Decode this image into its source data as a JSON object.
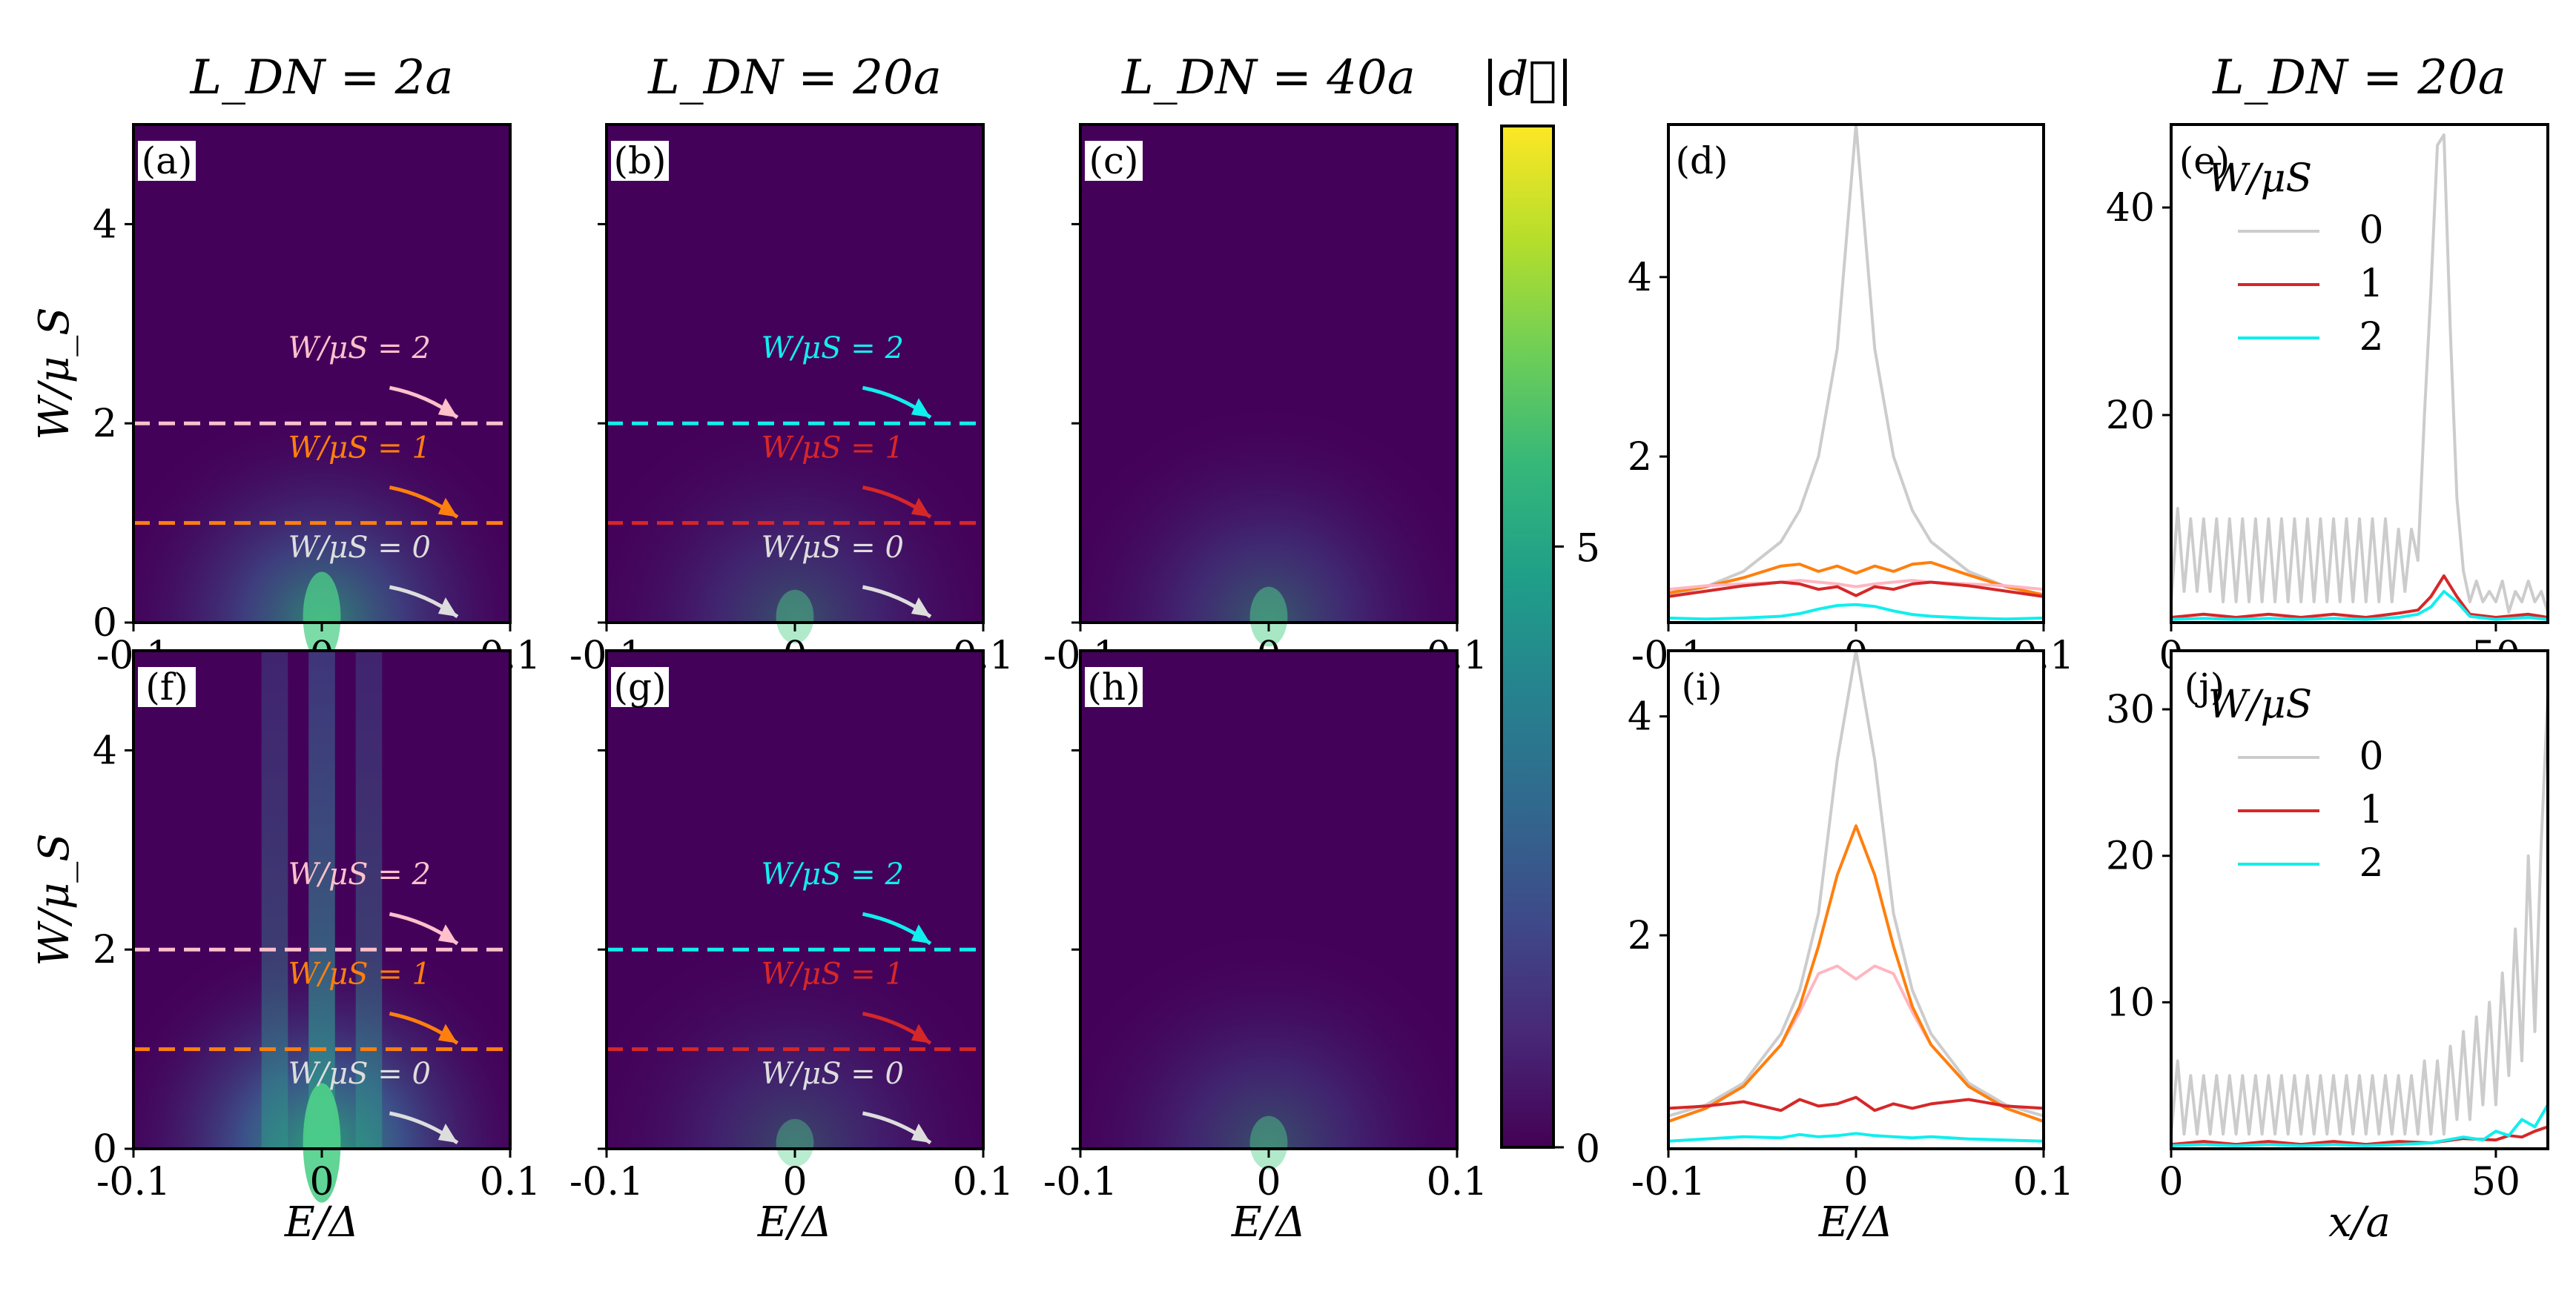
{
  "colors": {
    "w0_line": "#cccccc",
    "w1_line": "#d62728",
    "w2_line": "#11eeee",
    "orange": "#ff7f0e",
    "pink": "#ffb6c1",
    "heat_bg": "#44015a"
  },
  "chart_data": [
    {
      "id": "a",
      "type": "heatmap",
      "label": "(a)",
      "title": "L_DN = 2a",
      "xlabel": "E/Δ",
      "ylabel": "W/μ_S",
      "xlim": [
        -0.1,
        0.1
      ],
      "ylim": [
        0,
        5
      ],
      "x_ticks": [
        "-0.1",
        "0",
        "0.1"
      ],
      "y_ticks": [
        "0",
        "2",
        "4"
      ],
      "glow_strength": 1.5,
      "stripes": false,
      "cuts": [
        {
          "w": 0,
          "label": "W/μS = 0",
          "color": "#dddddd"
        },
        {
          "w": 1,
          "label": "W/μS = 1",
          "color": "#ff7f0e"
        },
        {
          "w": 2,
          "label": "W/μS = 2",
          "color": "#ffc0cb"
        }
      ]
    },
    {
      "id": "b",
      "type": "heatmap",
      "label": "(b)",
      "title": "L_DN = 20a",
      "xlabel": "E/Δ",
      "ylabel": "",
      "xlim": [
        -0.1,
        0.1
      ],
      "ylim": [
        0,
        5
      ],
      "x_ticks": [
        "-0.1",
        "0",
        "0.1"
      ],
      "y_ticks": [],
      "glow_strength": 0.9,
      "stripes": false,
      "cuts": [
        {
          "w": 0,
          "label": "W/μS = 0",
          "color": "#dddddd"
        },
        {
          "w": 1,
          "label": "W/μS = 1",
          "color": "#d62728"
        },
        {
          "w": 2,
          "label": "W/μS = 2",
          "color": "#11eeee"
        }
      ]
    },
    {
      "id": "c",
      "type": "heatmap",
      "label": "(c)",
      "title": "L_DN = 40a",
      "xlabel": "E/Δ",
      "ylabel": "",
      "xlim": [
        -0.1,
        0.1
      ],
      "ylim": [
        0,
        5
      ],
      "x_ticks": [
        "-0.1",
        "0",
        "0.1"
      ],
      "y_ticks": [],
      "glow_strength": 1.0,
      "stripes": false,
      "cuts": []
    },
    {
      "id": "f",
      "type": "heatmap",
      "label": "(f)",
      "title": "",
      "xlabel": "E/Δ",
      "ylabel": "W/μ_S",
      "xlim": [
        -0.1,
        0.1
      ],
      "ylim": [
        0,
        5
      ],
      "x_ticks": [
        "-0.1",
        "0",
        "0.1"
      ],
      "y_ticks": [
        "0",
        "2",
        "4"
      ],
      "glow_strength": 2.0,
      "stripes": true,
      "cuts": [
        {
          "w": 0,
          "label": "W/μS = 0",
          "color": "#dddddd"
        },
        {
          "w": 1,
          "label": "W/μS = 1",
          "color": "#ff7f0e"
        },
        {
          "w": 2,
          "label": "W/μS = 2",
          "color": "#ffc0cb"
        }
      ]
    },
    {
      "id": "g",
      "type": "heatmap",
      "label": "(g)",
      "title": "",
      "xlabel": "E/Δ",
      "ylabel": "",
      "xlim": [
        -0.1,
        0.1
      ],
      "ylim": [
        0,
        5
      ],
      "x_ticks": [
        "-0.1",
        "0",
        "0.1"
      ],
      "y_ticks": [],
      "glow_strength": 0.8,
      "stripes": false,
      "cuts": [
        {
          "w": 0,
          "label": "W/μS = 0",
          "color": "#dddddd"
        },
        {
          "w": 1,
          "label": "W/μS = 1",
          "color": "#d62728"
        },
        {
          "w": 2,
          "label": "W/μS = 2",
          "color": "#11eeee"
        }
      ]
    },
    {
      "id": "h",
      "type": "heatmap",
      "label": "(h)",
      "title": "",
      "xlabel": "E/Δ",
      "ylabel": "",
      "xlim": [
        -0.1,
        0.1
      ],
      "ylim": [
        0,
        5
      ],
      "x_ticks": [
        "-0.1",
        "0",
        "0.1"
      ],
      "y_ticks": [],
      "glow_strength": 0.9,
      "stripes": false,
      "cuts": []
    },
    {
      "id": "colorbar",
      "type": "colorbar",
      "label": "|d⃗|",
      "range": [
        0,
        8.5
      ],
      "ticks": [
        "0",
        "5"
      ],
      "colormap": "viridis"
    },
    {
      "id": "d",
      "type": "line",
      "label": "(d)",
      "xlabel": "",
      "xlim": [
        -0.1,
        0.1
      ],
      "ylim": [
        0.15,
        5.7
      ],
      "x_ticks": [
        "-0.1",
        "0",
        "0.1"
      ],
      "y_ticks": [
        "2",
        "4"
      ],
      "x": [
        -0.1,
        -0.08,
        -0.06,
        -0.04,
        -0.03,
        -0.02,
        -0.01,
        0,
        0.01,
        0.02,
        0.03,
        0.04,
        0.06,
        0.08,
        0.1
      ],
      "series": [
        {
          "name": "W/μS = 0",
          "color": "#cccccc",
          "values": [
            0.45,
            0.55,
            0.72,
            1.05,
            1.4,
            2.0,
            3.2,
            5.7,
            3.2,
            2.0,
            1.4,
            1.05,
            0.72,
            0.55,
            0.45
          ]
        },
        {
          "name": "W/μS = 1 (orange)",
          "color": "#ff7f0e",
          "values": [
            0.48,
            0.55,
            0.65,
            0.78,
            0.8,
            0.72,
            0.78,
            0.7,
            0.78,
            0.72,
            0.8,
            0.82,
            0.68,
            0.55,
            0.46
          ]
        },
        {
          "name": "W/μS = 2 (pink)",
          "color": "#ffb6c1",
          "values": [
            0.52,
            0.56,
            0.58,
            0.6,
            0.62,
            0.6,
            0.58,
            0.55,
            0.58,
            0.6,
            0.62,
            0.6,
            0.58,
            0.56,
            0.52
          ]
        },
        {
          "name": "W/μS = 1",
          "color": "#d62728",
          "values": [
            0.44,
            0.5,
            0.56,
            0.6,
            0.58,
            0.52,
            0.55,
            0.45,
            0.55,
            0.52,
            0.58,
            0.6,
            0.56,
            0.5,
            0.44
          ]
        },
        {
          "name": "W/μS = 2",
          "color": "#11eeee",
          "values": [
            0.2,
            0.19,
            0.2,
            0.22,
            0.25,
            0.3,
            0.34,
            0.35,
            0.33,
            0.28,
            0.24,
            0.22,
            0.2,
            0.19,
            0.2
          ]
        }
      ]
    },
    {
      "id": "i",
      "type": "line",
      "label": "(i)",
      "xlabel": "E/Δ",
      "xlim": [
        -0.1,
        0.1
      ],
      "ylim": [
        0.05,
        4.6
      ],
      "x_ticks": [
        "-0.1",
        "0",
        "0.1"
      ],
      "y_ticks": [
        "2",
        "4"
      ],
      "x": [
        -0.1,
        -0.08,
        -0.06,
        -0.04,
        -0.03,
        -0.02,
        -0.01,
        0,
        0.01,
        0.02,
        0.03,
        0.04,
        0.06,
        0.08,
        0.1
      ],
      "series": [
        {
          "name": "W/μS = 0",
          "color": "#cccccc",
          "values": [
            0.35,
            0.45,
            0.65,
            1.1,
            1.5,
            2.2,
            3.6,
            4.6,
            3.6,
            2.2,
            1.5,
            1.1,
            0.65,
            0.45,
            0.35
          ]
        },
        {
          "name": "W/μS = 2 (pink)",
          "color": "#ffb6c1",
          "values": [
            0.3,
            0.42,
            0.62,
            1.0,
            1.3,
            1.65,
            1.72,
            1.6,
            1.72,
            1.65,
            1.3,
            1.0,
            0.62,
            0.42,
            0.3
          ]
        },
        {
          "name": "W/μS = 1 (orange)",
          "color": "#ff7f0e",
          "values": [
            0.3,
            0.42,
            0.62,
            1.0,
            1.35,
            1.9,
            2.55,
            3.0,
            2.55,
            1.9,
            1.35,
            1.0,
            0.62,
            0.42,
            0.3
          ]
        },
        {
          "name": "W/μS = 1",
          "color": "#d62728",
          "values": [
            0.42,
            0.44,
            0.48,
            0.4,
            0.5,
            0.44,
            0.46,
            0.52,
            0.4,
            0.46,
            0.42,
            0.46,
            0.5,
            0.44,
            0.42
          ]
        },
        {
          "name": "W/μS = 2",
          "color": "#11eeee",
          "values": [
            0.12,
            0.14,
            0.16,
            0.15,
            0.18,
            0.16,
            0.17,
            0.19,
            0.17,
            0.16,
            0.15,
            0.16,
            0.14,
            0.13,
            0.12
          ]
        }
      ]
    },
    {
      "id": "e",
      "type": "line",
      "label": "(e)",
      "title": "L_DN = 20a",
      "xlabel": "",
      "xlim": [
        0,
        58
      ],
      "ylim": [
        0,
        48
      ],
      "x_ticks": [
        "0",
        "50"
      ],
      "y_ticks": [
        "20",
        "40"
      ],
      "legend": {
        "title": "W/μS",
        "entries": [
          "0",
          "1",
          "2"
        ]
      },
      "series": [
        {
          "name": "W/μS = 0",
          "color": "#cccccc",
          "x": [
            0,
            1,
            2,
            3,
            4,
            5,
            6,
            7,
            8,
            9,
            10,
            11,
            12,
            13,
            14,
            15,
            16,
            17,
            18,
            19,
            20,
            21,
            22,
            23,
            24,
            25,
            26,
            27,
            28,
            29,
            30,
            31,
            32,
            33,
            34,
            35,
            36,
            37,
            38,
            39,
            40,
            41,
            42,
            43,
            44,
            45,
            46,
            47,
            48,
            49,
            50,
            51,
            52,
            53,
            54,
            55,
            56,
            57,
            58
          ],
          "values": [
            2,
            11,
            3,
            10,
            3,
            10,
            3,
            10,
            2,
            10,
            2,
            10,
            2,
            10,
            2,
            10,
            2,
            10,
            2,
            10,
            2,
            10,
            2,
            10,
            2,
            10,
            2,
            10,
            2,
            10,
            2,
            10,
            2,
            10,
            2,
            9,
            3,
            9,
            6,
            20,
            32,
            46,
            47,
            28,
            12,
            5,
            2,
            4,
            2,
            3,
            2,
            4,
            1,
            3,
            2,
            4,
            2,
            3,
            1
          ]
        },
        {
          "name": "W/μS = 1",
          "color": "#d62728",
          "x": [
            0,
            5,
            10,
            15,
            20,
            25,
            30,
            35,
            38,
            40,
            42,
            44,
            46,
            50,
            55,
            58
          ],
          "values": [
            0.5,
            0.8,
            0.5,
            0.8,
            0.5,
            0.8,
            0.5,
            0.9,
            1.2,
            2.5,
            4.5,
            2.5,
            0.8,
            0.5,
            0.8,
            0.5
          ]
        },
        {
          "name": "W/μS = 2",
          "color": "#11eeee",
          "x": [
            0,
            5,
            10,
            15,
            20,
            25,
            30,
            35,
            38,
            40,
            42,
            44,
            46,
            50,
            55,
            58
          ],
          "values": [
            0.3,
            0.4,
            0.3,
            0.4,
            0.3,
            0.4,
            0.3,
            0.5,
            0.8,
            1.5,
            3.0,
            2.0,
            0.6,
            0.3,
            0.5,
            0.3
          ]
        }
      ]
    },
    {
      "id": "j",
      "type": "line",
      "label": "(j)",
      "xlabel": "x/a",
      "xlim": [
        0,
        58
      ],
      "ylim": [
        0,
        34
      ],
      "x_ticks": [
        "0",
        "50"
      ],
      "y_ticks": [
        "10",
        "20",
        "30"
      ],
      "legend": {
        "title": "W/μS",
        "entries": [
          "0",
          "1",
          "2"
        ]
      },
      "series": [
        {
          "name": "W/μS = 0",
          "color": "#cccccc",
          "x": [
            0,
            1,
            2,
            3,
            4,
            5,
            6,
            7,
            8,
            9,
            10,
            11,
            12,
            13,
            14,
            15,
            16,
            17,
            18,
            19,
            20,
            21,
            22,
            23,
            24,
            25,
            26,
            27,
            28,
            29,
            30,
            31,
            32,
            33,
            34,
            35,
            36,
            37,
            38,
            39,
            40,
            41,
            42,
            43,
            44,
            45,
            46,
            47,
            48,
            49,
            50,
            51,
            52,
            53,
            54,
            55,
            56,
            57,
            58
          ],
          "values": [
            1,
            6,
            1,
            5,
            1,
            5,
            1,
            5,
            1,
            5,
            1,
            5,
            1,
            5,
            1,
            5,
            1,
            5,
            1,
            5,
            1,
            5,
            1,
            5,
            1,
            5,
            1,
            5,
            1,
            5,
            1,
            5,
            1,
            5,
            1,
            5,
            1,
            5,
            1,
            6,
            1,
            6,
            1,
            7,
            2,
            8,
            2,
            9,
            3,
            10,
            3,
            12,
            5,
            15,
            6,
            20,
            8,
            21,
            31
          ]
        },
        {
          "name": "W/μS = 1",
          "color": "#d62728",
          "x": [
            0,
            5,
            10,
            15,
            20,
            25,
            30,
            35,
            40,
            45,
            50,
            52,
            54,
            56,
            58
          ],
          "values": [
            0.3,
            0.5,
            0.3,
            0.5,
            0.3,
            0.5,
            0.3,
            0.5,
            0.4,
            0.7,
            0.6,
            0.9,
            0.8,
            1.2,
            1.5
          ]
        },
        {
          "name": "W/μS = 2",
          "color": "#11eeee",
          "x": [
            0,
            5,
            10,
            15,
            20,
            25,
            30,
            35,
            40,
            45,
            48,
            50,
            52,
            54,
            56,
            58
          ],
          "values": [
            0.2,
            0.3,
            0.2,
            0.3,
            0.2,
            0.3,
            0.2,
            0.3,
            0.4,
            0.8,
            0.6,
            1.2,
            0.9,
            2.0,
            1.5,
            3.0
          ]
        }
      ]
    }
  ]
}
